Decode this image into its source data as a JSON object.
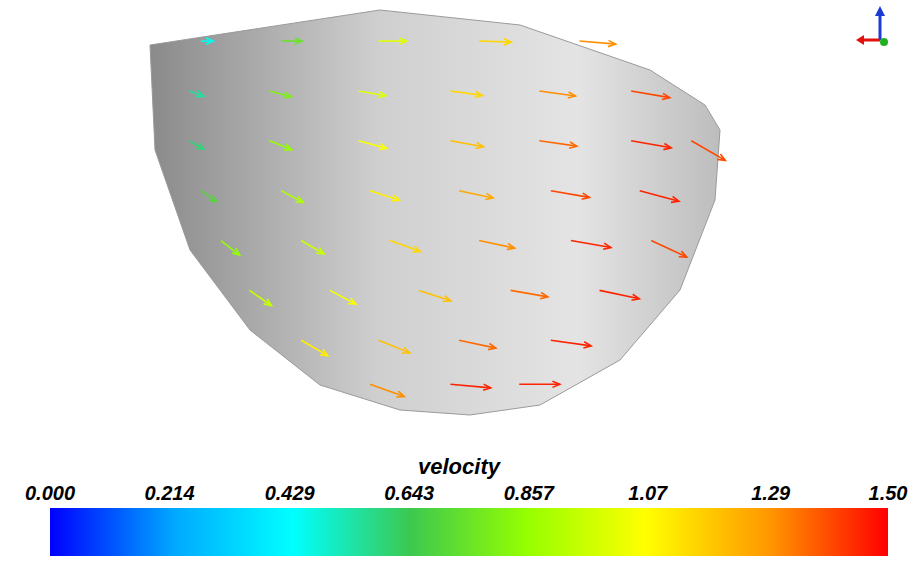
{
  "chart_data": {
    "type": "vector_field",
    "xlim": [
      -1.6,
      1.6
    ],
    "ylim": [
      -1.1,
      0.4
    ],
    "tick_labels": false,
    "vectors": {
      "x": [
        -0.9,
        -0.62,
        -0.28,
        0.07,
        0.42,
        -0.94,
        -0.66,
        -0.35,
        -0.03,
        0.28,
        0.6,
        -0.94,
        -0.66,
        -0.35,
        -0.03,
        0.28,
        0.6,
        0.81,
        -0.9,
        -0.62,
        -0.31,
        0.0,
        0.32,
        0.63,
        -0.83,
        -0.55,
        -0.24,
        0.07,
        0.39,
        0.67,
        -0.73,
        -0.45,
        -0.14,
        0.18,
        0.49,
        -0.55,
        -0.28,
        0.0,
        0.32,
        -0.31,
        -0.03,
        0.21
      ],
      "y": [
        0.26,
        0.26,
        0.26,
        0.26,
        0.26,
        0.09,
        0.09,
        0.09,
        0.09,
        0.09,
        0.09,
        -0.08,
        -0.08,
        -0.08,
        -0.08,
        -0.08,
        -0.08,
        -0.08,
        -0.25,
        -0.25,
        -0.25,
        -0.25,
        -0.25,
        -0.25,
        -0.42,
        -0.42,
        -0.42,
        -0.42,
        -0.42,
        -0.42,
        -0.59,
        -0.59,
        -0.59,
        -0.59,
        -0.59,
        -0.76,
        -0.76,
        -0.76,
        -0.76,
        -0.91,
        -0.91,
        -0.91
      ],
      "u": [
        0.45,
        0.75,
        1.0,
        1.15,
        1.29,
        0.52,
        0.77,
        0.98,
        1.14,
        1.29,
        1.38,
        0.52,
        0.79,
        1.01,
        1.18,
        1.34,
        1.43,
        1.21,
        0.57,
        0.79,
        1.05,
        1.22,
        1.38,
        1.4,
        0.67,
        0.82,
        1.08,
        1.27,
        1.43,
        1.27,
        0.78,
        0.93,
        1.14,
        1.33,
        1.42,
        0.95,
        1.11,
        1.32,
        1.44,
        1.22,
        1.44,
        1.45
      ],
      "v": [
        0,
        0,
        0,
        -0.04,
        -0.11,
        -0.19,
        -0.21,
        -0.17,
        -0.16,
        -0.18,
        -0.24,
        -0.3,
        -0.32,
        -0.27,
        -0.21,
        -0.19,
        -0.25,
        -0.7,
        -0.4,
        -0.42,
        -0.34,
        -0.26,
        -0.24,
        -0.38,
        -0.52,
        -0.48,
        -0.39,
        -0.27,
        -0.25,
        -0.59,
        -0.54,
        -0.49,
        -0.37,
        -0.23,
        -0.3,
        -0.55,
        -0.45,
        -0.28,
        -0.2,
        -0.44,
        -0.13,
        0
      ],
      "speed": [
        0.45,
        0.75,
        1.0,
        1.15,
        1.3,
        0.55,
        0.8,
        1.0,
        1.15,
        1.3,
        1.4,
        0.6,
        0.85,
        1.05,
        1.2,
        1.35,
        1.45,
        1.4,
        0.7,
        0.9,
        1.1,
        1.25,
        1.4,
        1.45,
        0.85,
        0.95,
        1.15,
        1.3,
        1.45,
        1.4,
        0.95,
        1.05,
        1.2,
        1.35,
        1.45,
        1.1,
        1.2,
        1.35,
        1.45,
        1.3,
        1.45,
        1.45
      ]
    },
    "colorbar": {
      "label": "velocity",
      "range": [
        0,
        1.5
      ],
      "ticks": [
        {
          "value": 0,
          "label": "0.000"
        },
        0.214,
        0.429,
        0.643,
        0.857,
        1.07,
        1.29,
        {
          "value": 1.5,
          "label": "1.50"
        }
      ]
    }
  }
}
